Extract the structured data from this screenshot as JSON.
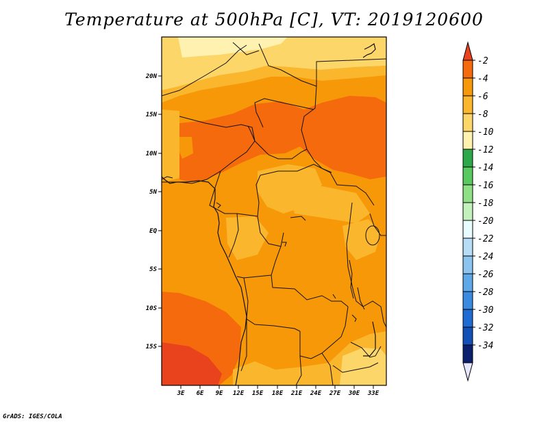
{
  "title": "Temperature at 500hPa [C], VT: 2019120600",
  "footer": "GrADS: IGES/COLA",
  "map": {
    "lon_range": [
      0,
      35
    ],
    "lat_range": [
      -20,
      25
    ],
    "lon_ticks": [
      "3E",
      "6E",
      "9E",
      "12E",
      "15E",
      "18E",
      "21E",
      "24E",
      "27E",
      "30E",
      "33E"
    ],
    "lat_ticks": [
      "20N",
      "15N",
      "10N",
      "5N",
      "EQ",
      "5S",
      "10S",
      "15S"
    ]
  },
  "colorbar": {
    "labels": [
      "-2",
      "-4",
      "-6",
      "-8",
      "-10",
      "-12",
      "-14",
      "-16",
      "-18",
      "-20",
      "-22",
      "-24",
      "-26",
      "-28",
      "-30",
      "-32",
      "-34"
    ],
    "colors": [
      "#e8431d",
      "#f56a0c",
      "#f79808",
      "#fab62c",
      "#fdd66a",
      "#fff2b0",
      "#2ca84a",
      "#57c95e",
      "#8fdf87",
      "#c3f1bb",
      "#e8fbff",
      "#b7dcf6",
      "#8cc3ef",
      "#5ea8e7",
      "#3a8ae0",
      "#1f6bd4",
      "#124fb7",
      "#0b1f6f",
      "#e6e8ff"
    ]
  }
}
